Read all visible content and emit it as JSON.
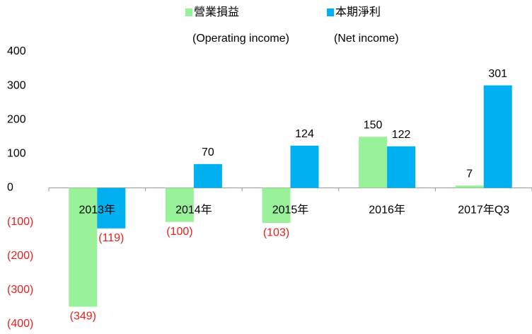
{
  "chart_data": {
    "type": "bar",
    "categories": [
      "2013年",
      "2014年",
      "2015年",
      "2016年",
      "2017年Q3"
    ],
    "series": [
      {
        "name": "營業損益",
        "name_en": "(Operating income)",
        "color": "#99f299",
        "values": [
          -349,
          -100,
          -103,
          150,
          7
        ],
        "value_labels": [
          "(349)",
          "(100)",
          "(103)",
          "150",
          "7"
        ]
      },
      {
        "name": "本期淨利",
        "name_en": "(Net income)",
        "color": "#00b0f0",
        "values": [
          -119,
          70,
          124,
          122,
          301
        ],
        "value_labels": [
          "(119)",
          "70",
          "124",
          "122",
          "301"
        ]
      }
    ],
    "ylim": [
      -400,
      400
    ],
    "yticks": [
      400,
      300,
      200,
      100,
      0,
      {
        "value": -100,
        "label": "(100)"
      },
      {
        "value": -200,
        "label": "(200)"
      },
      {
        "value": -300,
        "label": "(300)"
      },
      {
        "value": -400,
        "label": "(400)"
      }
    ],
    "grid": false,
    "legend": "top"
  }
}
